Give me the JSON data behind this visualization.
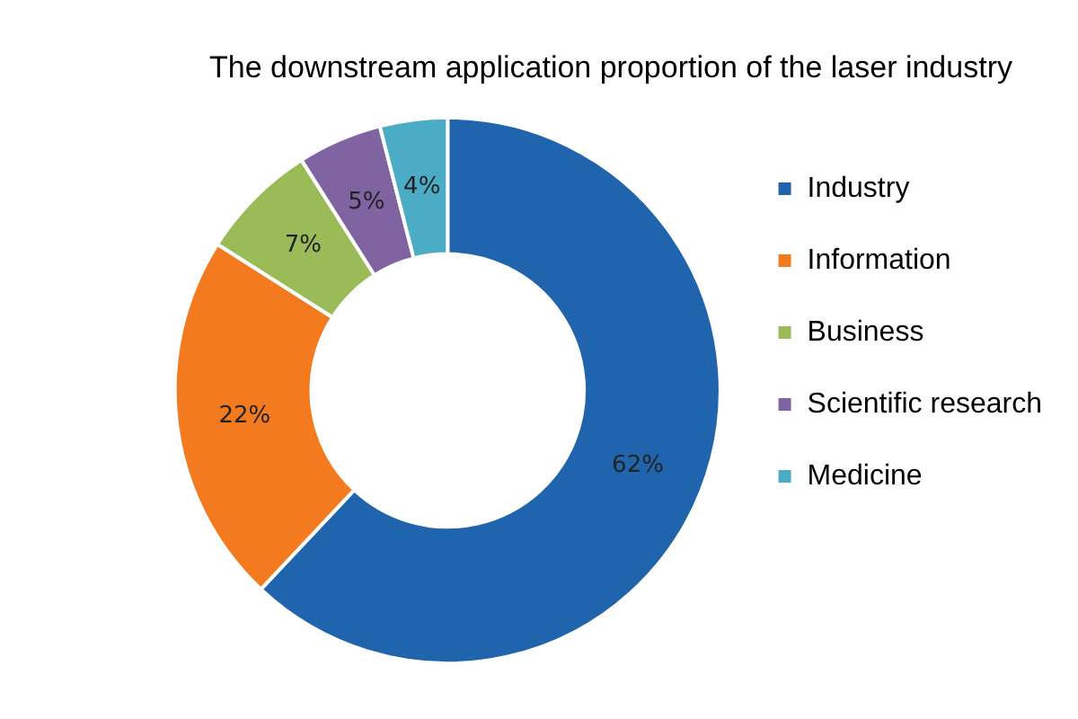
{
  "chart_data": {
    "type": "donut",
    "title": "The downstream application proportion of the laser industry",
    "categories": [
      "Industry",
      "Information",
      "Business",
      "Scientific research",
      "Medicine"
    ],
    "values": [
      62,
      22,
      7,
      5,
      4
    ],
    "value_labels": [
      "62%",
      "22%",
      "7%",
      "5%",
      "4%"
    ],
    "colors": [
      "#1f64ad",
      "#f47a20",
      "#9bbb59",
      "#8064a2",
      "#4bacc6"
    ],
    "legend": "right"
  }
}
